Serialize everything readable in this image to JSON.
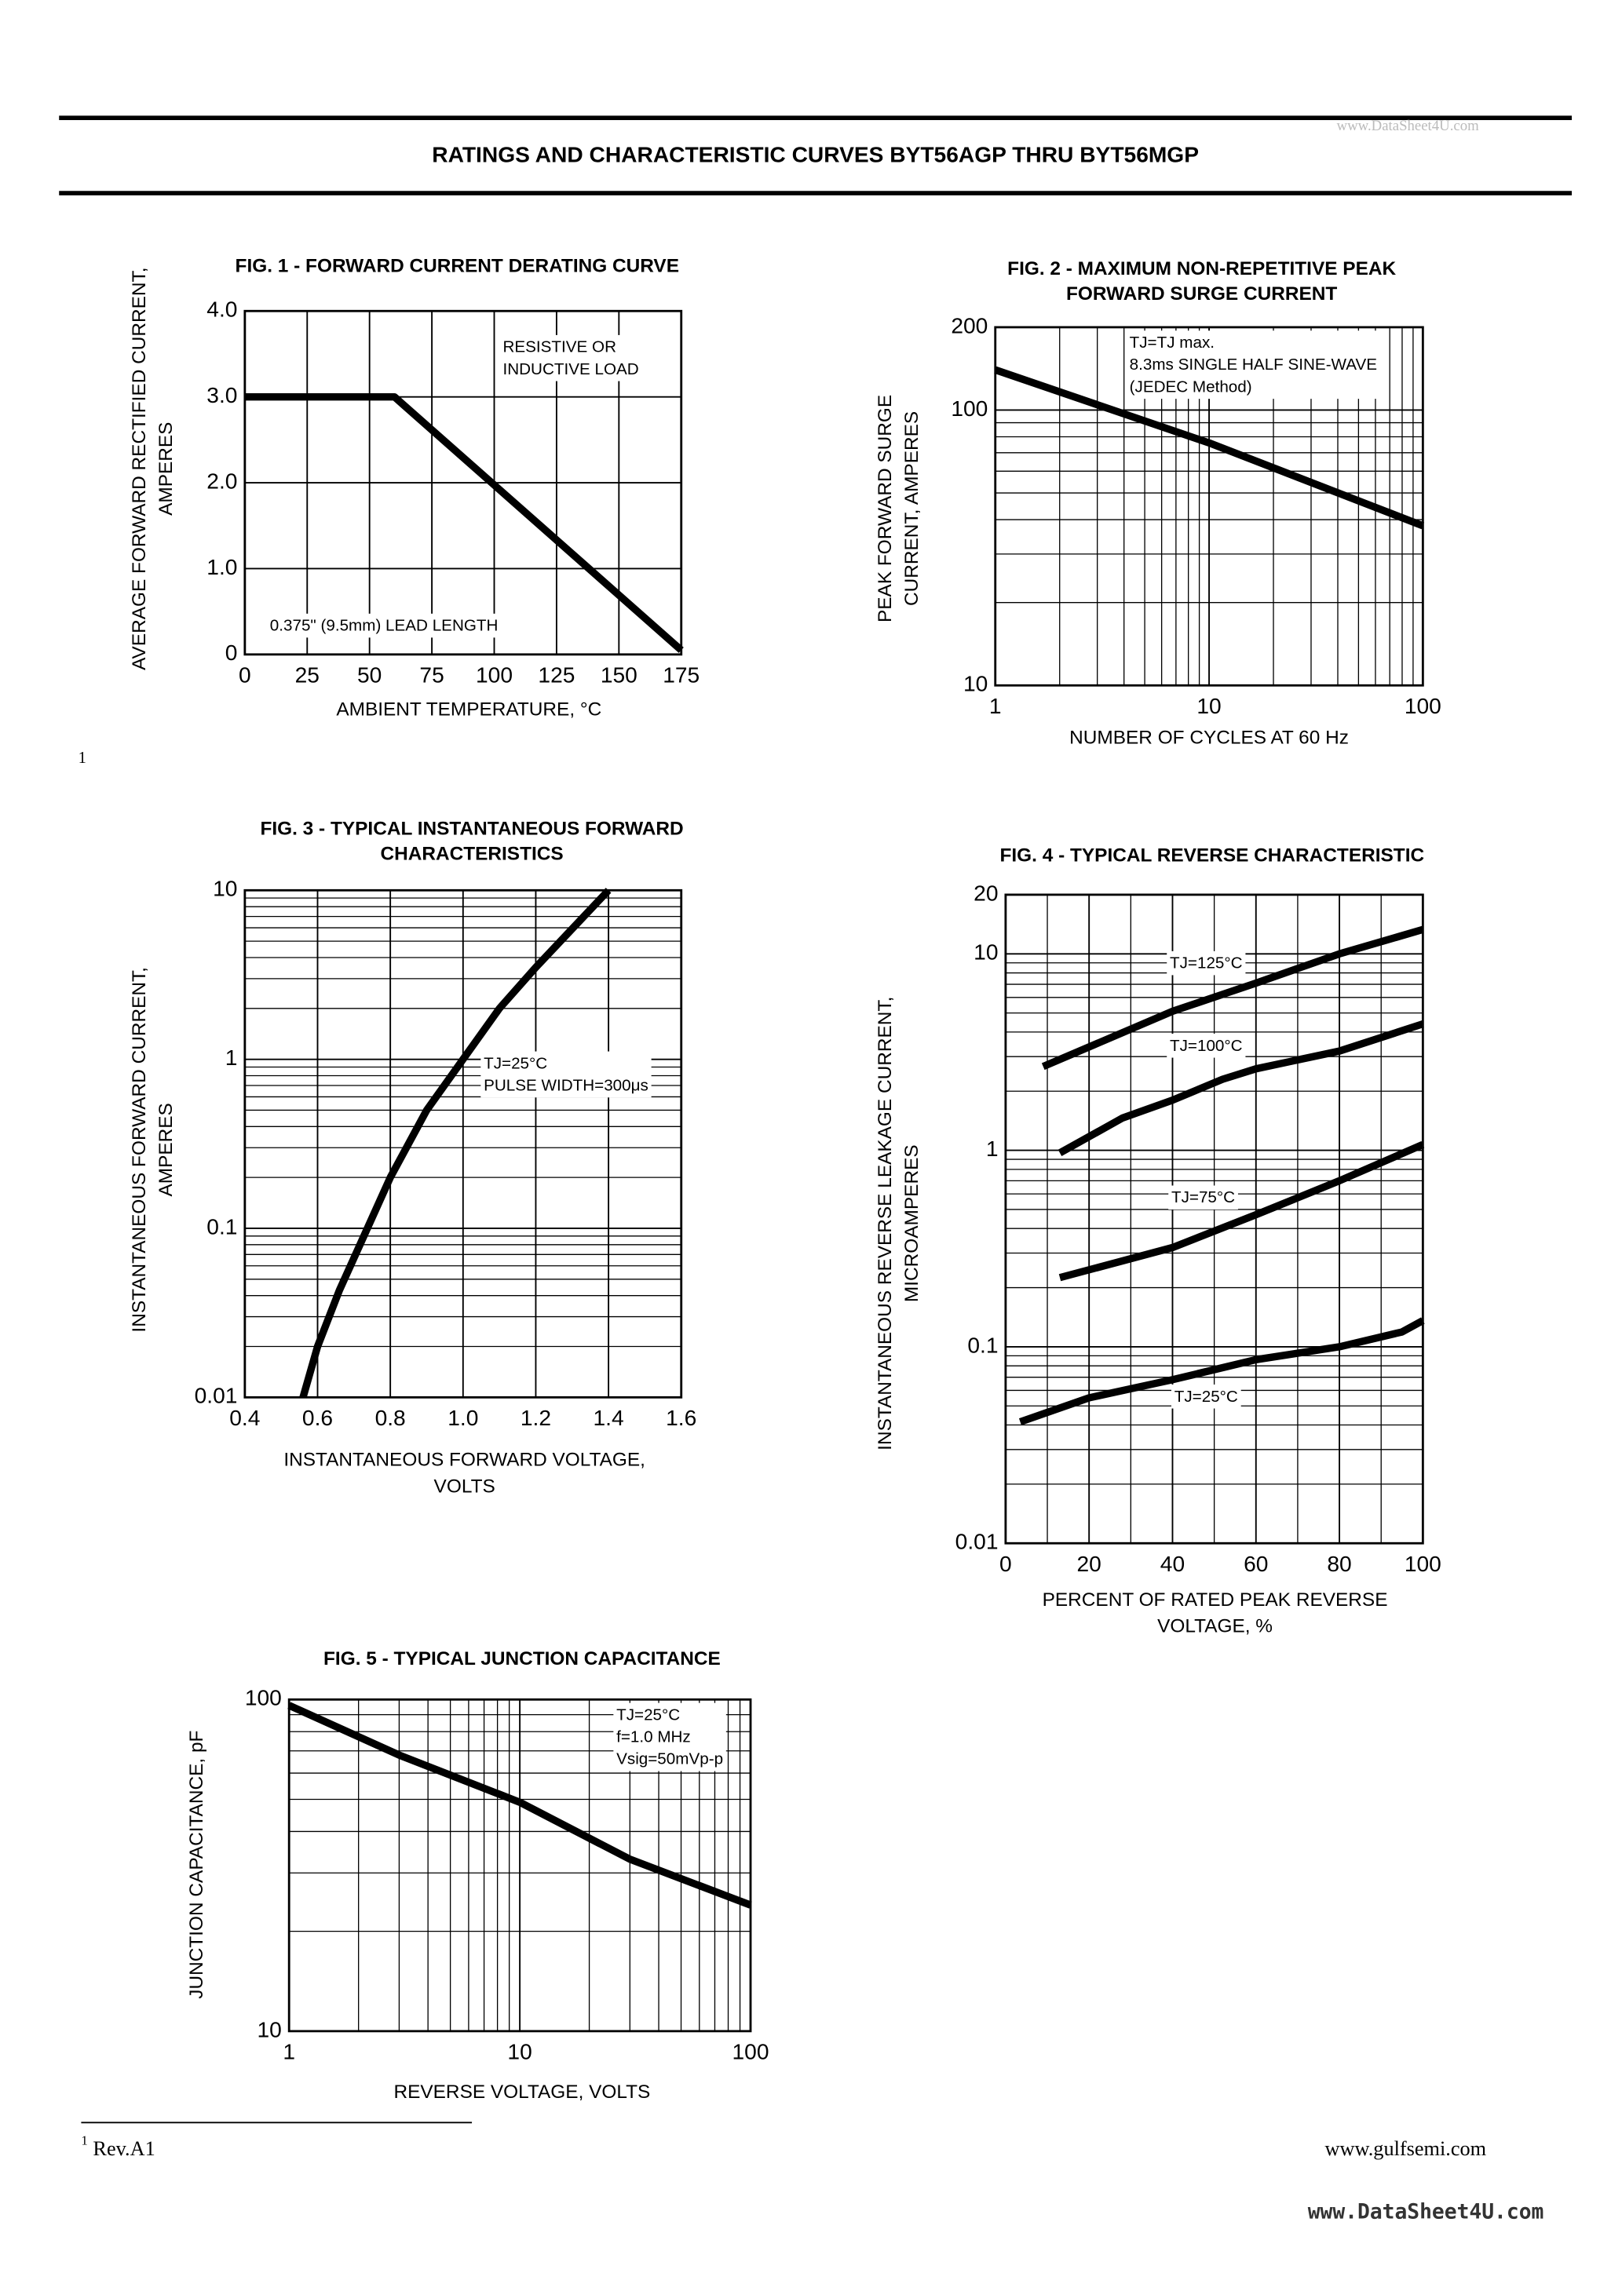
{
  "header": {
    "title": "RATINGS AND CHARACTERISTIC CURVES BYT56AGP THRU BYT56MGP",
    "watermark": "www.DataSheet4U.com"
  },
  "side_note": "1",
  "footer": {
    "mark": "1",
    "text": "Rev.A1",
    "website": "www.gulfsemi.com",
    "watermark": "www.DataSheet4U.com"
  },
  "chart_data": [
    {
      "type": "line",
      "title": [
        "FIG. 1 -  FORWARD CURRENT DERATING CURVE"
      ],
      "ylabel": [
        "AVERAGE FORWARD RECTIFIED CURRENT,",
        "AMPERES"
      ],
      "xlabel": [
        "AMBIENT TEMPERATURE, °C"
      ],
      "annotations": [
        [
          "RESISTIVE OR",
          "INDUCTIVE LOAD"
        ],
        [
          "0.375\" (9.5mm) LEAD LENGTH"
        ]
      ],
      "x": [
        0,
        60,
        175
      ],
      "values": [
        3.0,
        3.0,
        0.05
      ],
      "color": "#000000",
      "grid": true,
      "xlim": [
        0,
        175
      ],
      "xticks": [
        0,
        25,
        50,
        75,
        100,
        125,
        150,
        175
      ],
      "ylim": [
        0,
        4
      ],
      "yticks": [
        0,
        {
          "value": 1,
          "label": "1.0"
        },
        {
          "value": 2,
          "label": "2.0"
        },
        {
          "value": 3,
          "label": "3.0"
        },
        {
          "value": 4,
          "label": "4.0"
        }
      ]
    },
    {
      "type": "line",
      "title": [
        "FIG. 2 - MAXIMUM NON-REPETITIVE PEAK",
        "FORWARD SURGE CURRENT"
      ],
      "ylabel": [
        "PEAK FORWARD SURGE",
        "CURRENT, AMPERES"
      ],
      "xlabel": [
        "NUMBER OF CYCLES AT 60 Hz"
      ],
      "annotations": [
        [
          "TJ=TJ max.",
          "8.3ms SINGLE HALF SINE-WAVE",
          "(JEDEC Method)"
        ]
      ],
      "x": [
        1,
        10,
        100
      ],
      "values": [
        140,
        76,
        38
      ],
      "color": "#000000",
      "grid": true,
      "xscale": "log",
      "yscale": "log",
      "xlim": [
        1,
        100
      ],
      "xticks": [
        1,
        10,
        100
      ],
      "xminor": [
        2,
        3,
        4,
        5,
        6,
        7,
        8,
        9,
        20,
        30,
        40,
        50,
        60,
        70,
        80,
        90
      ],
      "ylim": [
        10,
        200
      ],
      "yticks": [
        10,
        100,
        200
      ],
      "yminor": [
        20,
        30,
        40,
        50,
        60,
        70,
        80,
        90
      ]
    },
    {
      "type": "line",
      "title": [
        "FIG. 3 - TYPICAL INSTANTANEOUS FORWARD",
        "CHARACTERISTICS"
      ],
      "ylabel": [
        "INSTANTANEOUS FORWARD CURRENT,",
        "AMPERES"
      ],
      "xlabel": [
        "INSTANTANEOUS FORWARD VOLTAGE,",
        "VOLTS"
      ],
      "annotations": [
        [
          "TJ=25°C",
          "PULSE WIDTH=300μs"
        ]
      ],
      "x": [
        0.56,
        0.6,
        0.66,
        0.8,
        0.9,
        1.0,
        1.1,
        1.2,
        1.4
      ],
      "values": [
        0.01,
        0.02,
        0.043,
        0.2,
        0.5,
        1.0,
        2.0,
        3.5,
        10
      ],
      "color": "#000000",
      "grid": true,
      "yscale": "log",
      "xlim": [
        0.4,
        1.6
      ],
      "xticks": [
        0.4,
        0.6,
        0.8,
        {
          "value": 1,
          "label": "1.0"
        },
        1.2,
        1.4,
        1.6
      ],
      "ylim": [
        0.01,
        10
      ],
      "yticks": [
        0.01,
        0.1,
        1,
        10
      ],
      "yminor": [
        0.02,
        0.03,
        0.04,
        0.05,
        0.06,
        0.07,
        0.08,
        0.09,
        0.2,
        0.3,
        0.4,
        0.5,
        0.6,
        0.7,
        0.8,
        0.9,
        2,
        3,
        4,
        5,
        6,
        7,
        8,
        9
      ]
    },
    {
      "type": "line",
      "title": [
        "FIG. 4 - TYPICAL REVERSE CHARACTERISTIC"
      ],
      "ylabel": [
        "INSTANTANEOUS REVERSE LEAKAGE CURRENT,",
        "MICROAMPERES"
      ],
      "xlabel": [
        "PERCENT OF RATED PEAK REVERSE",
        "VOLTAGE, %"
      ],
      "series": [
        {
          "name": "TJ=125°C",
          "color": "#000000",
          "x": [
            9,
            40,
            60,
            80,
            100
          ],
          "values": [
            2.67,
            5.1,
            7.1,
            10,
            13.3
          ]
        },
        {
          "name": "TJ=100°C",
          "color": "#000000",
          "x": [
            13,
            28,
            40,
            52,
            60,
            80,
            100
          ],
          "values": [
            0.97,
            1.46,
            1.8,
            2.3,
            2.6,
            3.2,
            4.4
          ]
        },
        {
          "name": "TJ=75°C",
          "color": "#000000",
          "x": [
            13,
            40,
            60,
            80,
            100
          ],
          "values": [
            0.225,
            0.32,
            0.47,
            0.7,
            1.07
          ]
        },
        {
          "name": "TJ=25°C",
          "color": "#000000",
          "x": [
            3.5,
            20,
            40,
            60,
            80,
            95,
            100
          ],
          "values": [
            0.0415,
            0.055,
            0.068,
            0.086,
            0.1,
            0.119,
            0.136
          ]
        }
      ],
      "grid": true,
      "yscale": "log",
      "xlim": [
        0,
        100
      ],
      "xticks": [
        0,
        20,
        40,
        60,
        80,
        100
      ],
      "xminor": [
        10,
        30,
        50,
        70,
        90
      ],
      "ylim": [
        0.01,
        20
      ],
      "yticks": [
        0.01,
        0.1,
        1,
        10,
        20
      ],
      "yminor": [
        0.02,
        0.03,
        0.04,
        0.05,
        0.06,
        0.07,
        0.08,
        0.09,
        0.2,
        0.3,
        0.4,
        0.5,
        0.6,
        0.7,
        0.8,
        0.9,
        2,
        3,
        4,
        5,
        6,
        7,
        8,
        9
      ]
    },
    {
      "type": "line",
      "title": [
        "FIG. 5 - TYPICAL JUNCTION CAPACITANCE"
      ],
      "ylabel": [
        "JUNCTION CAPACITANCE, pF"
      ],
      "xlabel": [
        "REVERSE VOLTAGE, VOLTS"
      ],
      "annotations": [
        [
          "TJ=25°C",
          "f=1.0 MHz",
          "Vsig=50mVp-p"
        ]
      ],
      "x": [
        1,
        3,
        10,
        30,
        100
      ],
      "values": [
        96,
        68,
        49,
        33,
        24
      ],
      "color": "#000000",
      "grid": true,
      "xscale": "log",
      "yscale": "log",
      "xlim": [
        1,
        100
      ],
      "xticks": [
        1,
        10,
        100
      ],
      "xminor": [
        2,
        3,
        4,
        5,
        6,
        7,
        8,
        9,
        20,
        30,
        40,
        50,
        60,
        70,
        80,
        90
      ],
      "ylim": [
        10,
        100
      ],
      "yticks": [
        10,
        100
      ],
      "yminor": [
        20,
        30,
        40,
        50,
        60,
        70,
        80,
        90
      ]
    }
  ]
}
